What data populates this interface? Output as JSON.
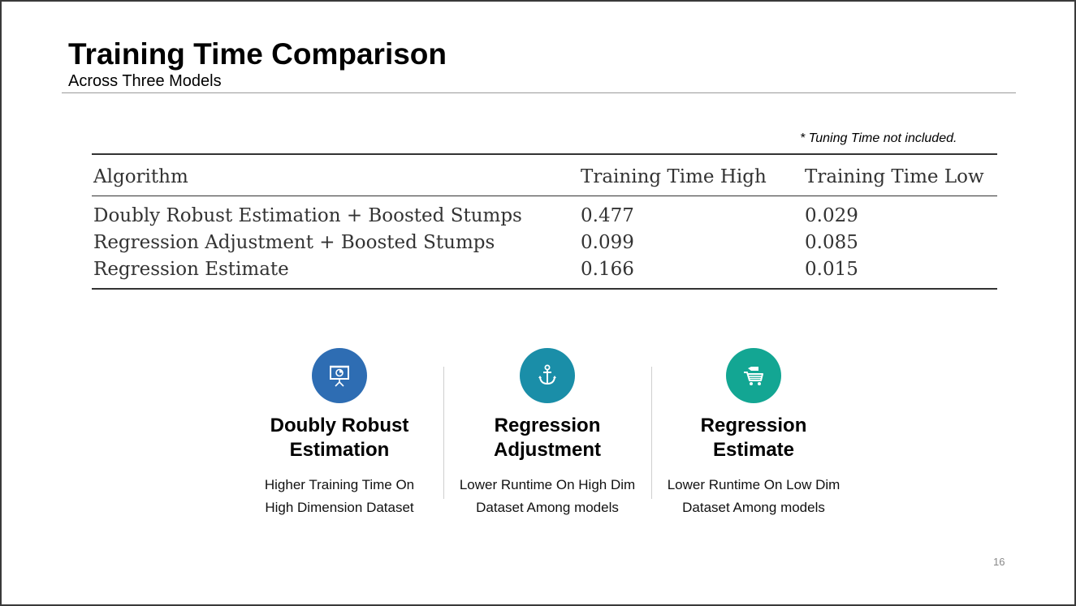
{
  "slide": {
    "title": "Training Time Comparison",
    "subtitle": "Across Three Models",
    "footnote": "* Tuning Time not included.",
    "page_number": "16"
  },
  "table": {
    "headers": [
      "Algorithm",
      "Training Time High",
      "Training Time Low"
    ],
    "rows": [
      [
        "Doubly Robust Estimation + Boosted Stumps",
        "0.477",
        "0.029"
      ],
      [
        "Regression Adjustment + Boosted Stumps",
        "0.099",
        "0.085"
      ],
      [
        "Regression Estimate",
        "0.166",
        "0.015"
      ]
    ]
  },
  "features": [
    {
      "title_line1": "Doubly Robust",
      "title_line2": "Estimation",
      "desc_line1": "Higher Training Time On",
      "desc_line2": "High Dimension Dataset",
      "icon": "presentation-icon",
      "color": "#2e6db3"
    },
    {
      "title_line1": "Regression",
      "title_line2": "Adjustment",
      "desc_line1": "Lower Runtime On High Dim",
      "desc_line2": "Dataset Among models",
      "icon": "anchor-icon",
      "color": "#1a8ea8"
    },
    {
      "title_line1": "Regression",
      "title_line2": "Estimate",
      "desc_line1": "Lower Runtime On Low Dim",
      "desc_line2": "Dataset Among models",
      "icon": "cart-icon",
      "color": "#13a693"
    }
  ]
}
